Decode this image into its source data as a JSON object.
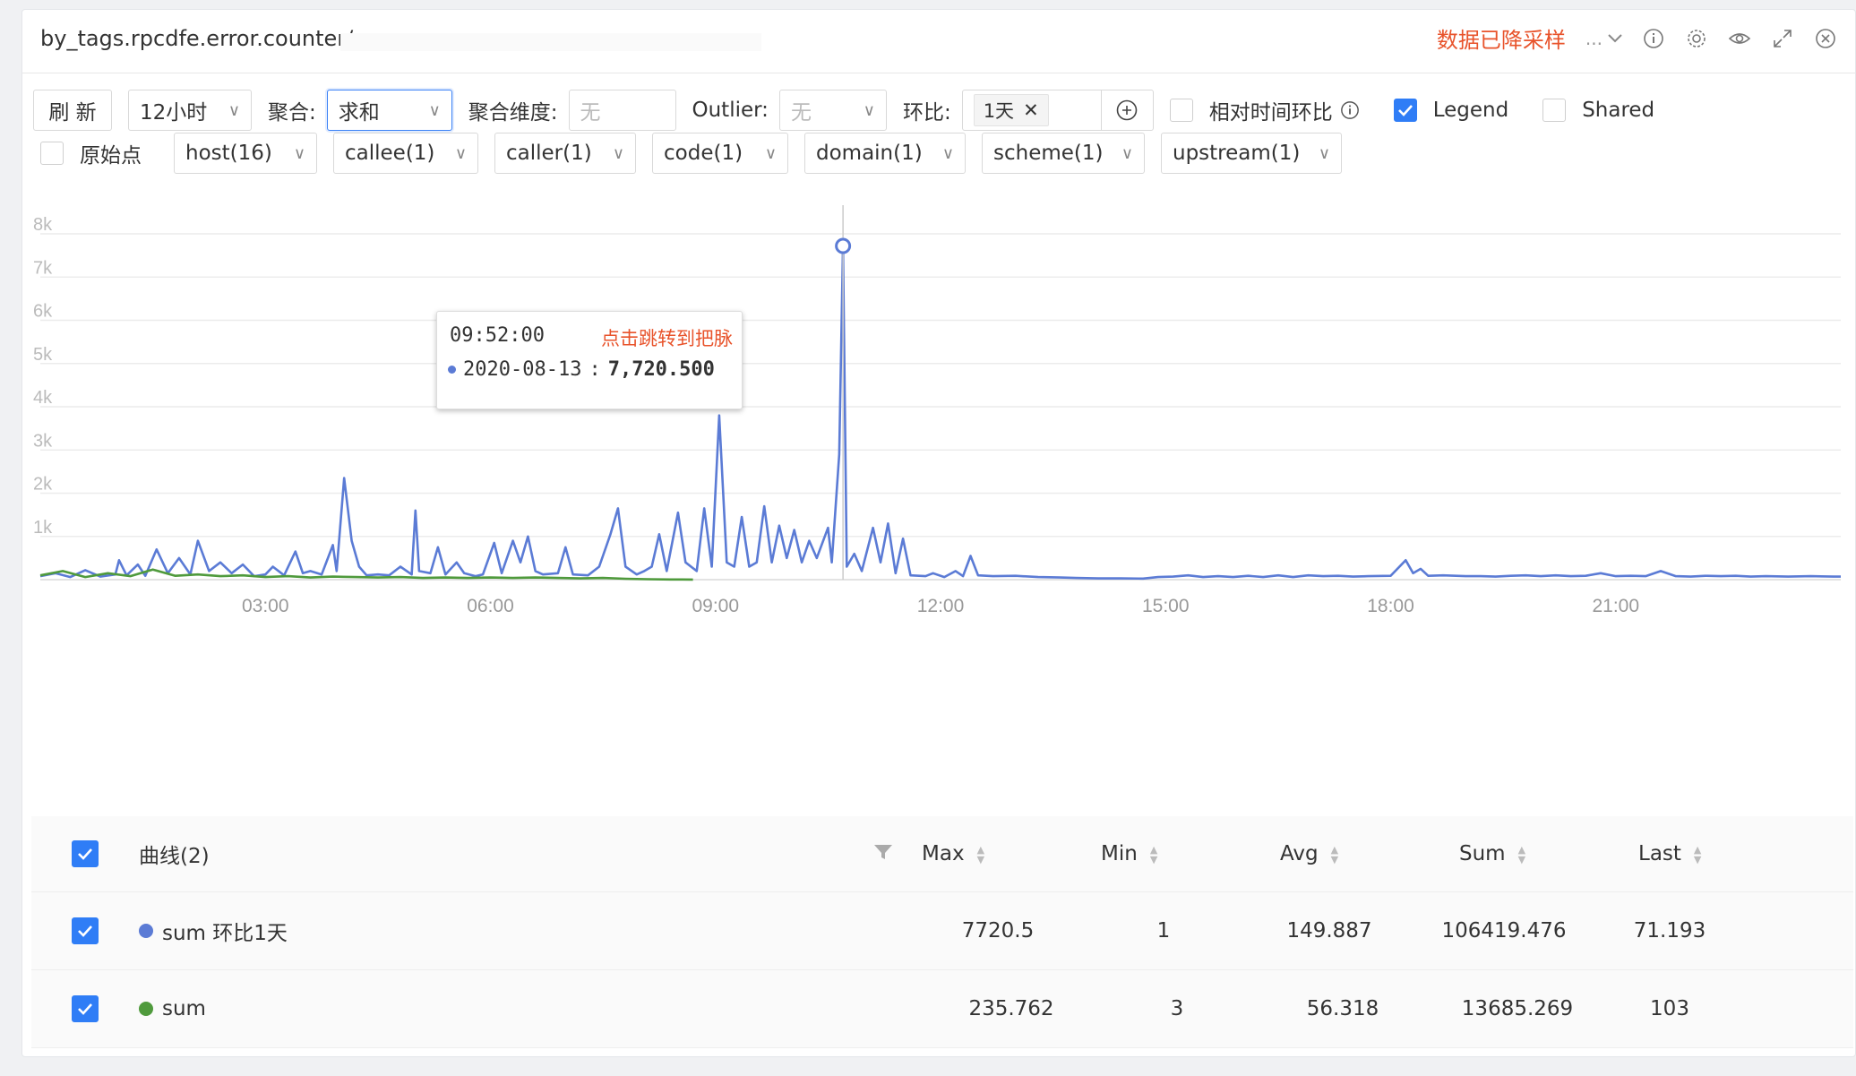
{
  "header": {
    "title": "by_tags.rpcdfe.error.counter/",
    "sampled_label": "数据已降采样",
    "sample_select_value": "...",
    "icons": [
      "info-icon",
      "gear-icon",
      "eye-icon",
      "expand-icon",
      "close-icon"
    ]
  },
  "toolbar": {
    "refresh_label": "刷 新",
    "time_range": "12小时",
    "agg_label": "聚合:",
    "agg_value": "求和",
    "agg_dim_label": "聚合维度:",
    "agg_dim_placeholder": "无",
    "outlier_label": "Outlier:",
    "outlier_value": "无",
    "compare_label": "环比:",
    "compare_tag": "1天",
    "relative_label": "相对时间环比",
    "legend_label": "Legend",
    "shared_label": "Shared",
    "raw_points_label": "原始点",
    "filters": [
      "host(16)",
      "callee(1)",
      "caller(1)",
      "code(1)",
      "domain(1)",
      "scheme(1)",
      "upstream(1)"
    ]
  },
  "tooltip": {
    "time": "09:52:00",
    "link": "点击跳转到把脉",
    "series_label": "2020-08-13",
    "value": "7,720.500"
  },
  "legend_table": {
    "header": {
      "name": "曲线(2)",
      "max": "Max",
      "min": "Min",
      "avg": "Avg",
      "sum": "Sum",
      "last": "Last"
    },
    "rows": [
      {
        "name": "sum 环比1天",
        "color": "#5b7bd5",
        "max": "7720.5",
        "min": "1",
        "avg": "149.887",
        "sum": "106419.476",
        "last": "71.193"
      },
      {
        "name": "sum",
        "color": "#4f9a3c",
        "max": "235.762",
        "min": "3",
        "avg": "56.318",
        "sum": "13685.269",
        "last": "103"
      }
    ]
  },
  "chart_data": {
    "type": "line",
    "x_ticks": [
      "03:00",
      "06:00",
      "09:00",
      "12:00",
      "15:00",
      "18:00",
      "21:00"
    ],
    "y_ticks": [
      "1k",
      "2k",
      "3k",
      "4k",
      "5k",
      "6k",
      "7k",
      "8k"
    ],
    "ylim": [
      0,
      8000
    ],
    "x_range_hours": [
      0,
      24
    ],
    "grid": true,
    "series": [
      {
        "name": "sum 环比1天",
        "color": "#5b7bd5",
        "points": [
          [
            0.0,
            80
          ],
          [
            0.2,
            150
          ],
          [
            0.4,
            60
          ],
          [
            0.6,
            220
          ],
          [
            0.8,
            70
          ],
          [
            1.0,
            120
          ],
          [
            1.05,
            450
          ],
          [
            1.15,
            100
          ],
          [
            1.3,
            350
          ],
          [
            1.4,
            90
          ],
          [
            1.55,
            700
          ],
          [
            1.7,
            150
          ],
          [
            1.85,
            500
          ],
          [
            2.0,
            120
          ],
          [
            2.1,
            900
          ],
          [
            2.25,
            200
          ],
          [
            2.4,
            400
          ],
          [
            2.55,
            150
          ],
          [
            2.7,
            350
          ],
          [
            2.85,
            80
          ],
          [
            3.0,
            120
          ],
          [
            3.1,
            300
          ],
          [
            3.25,
            100
          ],
          [
            3.4,
            650
          ],
          [
            3.5,
            150
          ],
          [
            3.6,
            200
          ],
          [
            3.75,
            120
          ],
          [
            3.9,
            800
          ],
          [
            3.95,
            200
          ],
          [
            4.05,
            2350
          ],
          [
            4.15,
            900
          ],
          [
            4.25,
            300
          ],
          [
            4.35,
            100
          ],
          [
            4.5,
            120
          ],
          [
            4.65,
            100
          ],
          [
            4.8,
            300
          ],
          [
            4.95,
            120
          ],
          [
            5.0,
            1600
          ],
          [
            5.05,
            200
          ],
          [
            5.2,
            150
          ],
          [
            5.3,
            750
          ],
          [
            5.4,
            120
          ],
          [
            5.55,
            400
          ],
          [
            5.65,
            150
          ],
          [
            5.8,
            80
          ],
          [
            5.9,
            120
          ],
          [
            6.05,
            850
          ],
          [
            6.15,
            150
          ],
          [
            6.3,
            900
          ],
          [
            6.4,
            400
          ],
          [
            6.5,
            1000
          ],
          [
            6.6,
            200
          ],
          [
            6.7,
            120
          ],
          [
            6.9,
            150
          ],
          [
            7.0,
            750
          ],
          [
            7.1,
            120
          ],
          [
            7.3,
            100
          ],
          [
            7.45,
            300
          ],
          [
            7.6,
            1050
          ],
          [
            7.7,
            1650
          ],
          [
            7.8,
            300
          ],
          [
            7.95,
            120
          ],
          [
            8.05,
            200
          ],
          [
            8.15,
            300
          ],
          [
            8.25,
            1050
          ],
          [
            8.35,
            200
          ],
          [
            8.5,
            1550
          ],
          [
            8.6,
            400
          ],
          [
            8.75,
            200
          ],
          [
            8.85,
            1650
          ],
          [
            8.95,
            300
          ],
          [
            9.05,
            3800
          ],
          [
            9.15,
            400
          ],
          [
            9.25,
            300
          ],
          [
            9.35,
            1450
          ],
          [
            9.45,
            300
          ],
          [
            9.55,
            400
          ],
          [
            9.65,
            1700
          ],
          [
            9.75,
            400
          ],
          [
            9.85,
            1250
          ],
          [
            9.95,
            500
          ],
          [
            10.05,
            1150
          ],
          [
            10.15,
            400
          ],
          [
            10.25,
            900
          ],
          [
            10.35,
            500
          ],
          [
            10.5,
            1200
          ],
          [
            10.55,
            400
          ],
          [
            10.65,
            2900
          ],
          [
            10.7,
            7720
          ],
          [
            10.75,
            300
          ],
          [
            10.85,
            600
          ],
          [
            10.95,
            200
          ],
          [
            11.1,
            1200
          ],
          [
            11.2,
            400
          ],
          [
            11.3,
            1300
          ],
          [
            11.4,
            150
          ],
          [
            11.5,
            950
          ],
          [
            11.6,
            100
          ],
          [
            11.8,
            80
          ],
          [
            11.9,
            150
          ],
          [
            12.05,
            60
          ],
          [
            12.2,
            200
          ],
          [
            12.3,
            80
          ],
          [
            12.4,
            550
          ],
          [
            12.5,
            100
          ],
          [
            12.7,
            80
          ],
          [
            13.0,
            90
          ],
          [
            13.3,
            60
          ],
          [
            13.6,
            50
          ],
          [
            13.8,
            40
          ],
          [
            14.1,
            30
          ],
          [
            14.4,
            30
          ],
          [
            14.7,
            25
          ],
          [
            14.9,
            60
          ],
          [
            15.1,
            70
          ],
          [
            15.3,
            100
          ],
          [
            15.5,
            60
          ],
          [
            15.7,
            80
          ],
          [
            15.9,
            60
          ],
          [
            16.1,
            90
          ],
          [
            16.3,
            60
          ],
          [
            16.5,
            100
          ],
          [
            16.7,
            60
          ],
          [
            16.9,
            100
          ],
          [
            17.1,
            80
          ],
          [
            17.3,
            90
          ],
          [
            17.5,
            70
          ],
          [
            17.7,
            80
          ],
          [
            18.0,
            90
          ],
          [
            18.2,
            450
          ],
          [
            18.3,
            150
          ],
          [
            18.4,
            250
          ],
          [
            18.5,
            90
          ],
          [
            18.7,
            100
          ],
          [
            19.0,
            80
          ],
          [
            19.2,
            80
          ],
          [
            19.4,
            70
          ],
          [
            19.6,
            90
          ],
          [
            19.8,
            100
          ],
          [
            20.0,
            80
          ],
          [
            20.2,
            100
          ],
          [
            20.4,
            80
          ],
          [
            20.6,
            90
          ],
          [
            20.8,
            150
          ],
          [
            21.0,
            80
          ],
          [
            21.2,
            90
          ],
          [
            21.4,
            80
          ],
          [
            21.6,
            200
          ],
          [
            21.8,
            80
          ],
          [
            22.0,
            70
          ],
          [
            22.2,
            90
          ],
          [
            22.4,
            80
          ],
          [
            22.6,
            90
          ],
          [
            22.8,
            70
          ],
          [
            23.0,
            80
          ],
          [
            23.3,
            70
          ],
          [
            23.6,
            80
          ],
          [
            23.9,
            70
          ],
          [
            24.0,
            71
          ]
        ]
      },
      {
        "name": "sum",
        "color": "#4f9a3c",
        "points": [
          [
            0.0,
            100
          ],
          [
            0.3,
            200
          ],
          [
            0.6,
            60
          ],
          [
            0.9,
            150
          ],
          [
            1.2,
            80
          ],
          [
            1.5,
            235
          ],
          [
            1.8,
            90
          ],
          [
            2.1,
            120
          ],
          [
            2.4,
            80
          ],
          [
            2.7,
            100
          ],
          [
            3.0,
            60
          ],
          [
            3.3,
            80
          ],
          [
            3.6,
            50
          ],
          [
            3.9,
            70
          ],
          [
            4.2,
            60
          ],
          [
            4.5,
            50
          ],
          [
            4.8,
            60
          ],
          [
            5.1,
            40
          ],
          [
            5.4,
            50
          ],
          [
            5.7,
            40
          ],
          [
            6.0,
            50
          ],
          [
            6.3,
            40
          ],
          [
            6.6,
            50
          ],
          [
            6.9,
            40
          ],
          [
            7.2,
            30
          ],
          [
            7.5,
            40
          ],
          [
            7.8,
            20
          ],
          [
            8.1,
            10
          ],
          [
            8.4,
            5
          ],
          [
            8.7,
            3
          ]
        ]
      }
    ],
    "highlight": {
      "x_label": "09:52:00",
      "value": 7720.5
    }
  }
}
